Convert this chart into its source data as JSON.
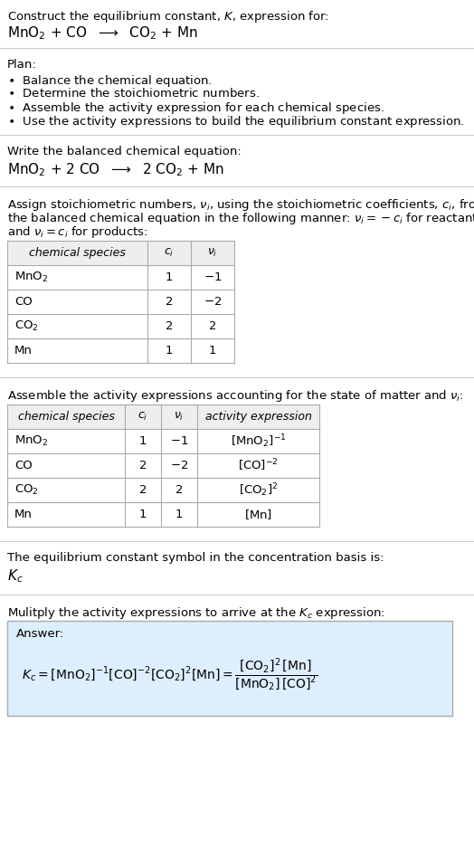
{
  "title_line1": "Construct the equilibrium constant, $K$, expression for:",
  "title_line2": "$\\mathrm{MnO_2}$ + CO  $\\longrightarrow$  $\\mathrm{CO_2}$ + Mn",
  "plan_header": "Plan:",
  "plan_items": [
    "$\\bullet$  Balance the chemical equation.",
    "$\\bullet$  Determine the stoichiometric numbers.",
    "$\\bullet$  Assemble the activity expression for each chemical species.",
    "$\\bullet$  Use the activity expressions to build the equilibrium constant expression."
  ],
  "balanced_header": "Write the balanced chemical equation:",
  "balanced_eq": "$\\mathrm{MnO_2}$ + 2 CO  $\\longrightarrow$  2 $\\mathrm{CO_2}$ + Mn",
  "stoich_text1": "Assign stoichiometric numbers, $\\nu_i$, using the stoichiometric coefficients, $c_i$, from",
  "stoich_text2": "the balanced chemical equation in the following manner: $\\nu_i = -c_i$ for reactants",
  "stoich_text3": "and $\\nu_i = c_i$ for products:",
  "table1_col0_header": "chemical species",
  "table1_col1_header": "$c_i$",
  "table1_col2_header": "$\\nu_i$",
  "table1_rows": [
    [
      "$\\mathrm{MnO_2}$",
      "1",
      "$-1$"
    ],
    [
      "CO",
      "2",
      "$-2$"
    ],
    [
      "$\\mathrm{CO_2}$",
      "2",
      "2"
    ],
    [
      "Mn",
      "1",
      "1"
    ]
  ],
  "activity_header": "Assemble the activity expressions accounting for the state of matter and $\\nu_i$:",
  "table2_col0_header": "chemical species",
  "table2_col1_header": "$c_i$",
  "table2_col2_header": "$\\nu_i$",
  "table2_col3_header": "activity expression",
  "table2_rows": [
    [
      "$\\mathrm{MnO_2}$",
      "1",
      "$-1$",
      "$[\\mathrm{MnO_2}]^{-1}$"
    ],
    [
      "CO",
      "2",
      "$-2$",
      "$[\\mathrm{CO}]^{-2}$"
    ],
    [
      "$\\mathrm{CO_2}$",
      "2",
      "2",
      "$[\\mathrm{CO_2}]^{2}$"
    ],
    [
      "Mn",
      "1",
      "1",
      "$[\\mathrm{Mn}]$"
    ]
  ],
  "kc_header": "The equilibrium constant symbol in the concentration basis is:",
  "kc_symbol": "$K_c$",
  "multiply_header": "Mulitply the activity expressions to arrive at the $K_c$ expression:",
  "answer_label": "Answer:",
  "bg_color": "#ffffff",
  "answer_bg_color": "#ddeeff",
  "table_line_color": "#aaaaaa",
  "separator_color": "#cccccc",
  "text_color": "#000000",
  "font_size": 9.5,
  "fig_width": 5.24,
  "fig_height": 9.57,
  "dpi": 100
}
